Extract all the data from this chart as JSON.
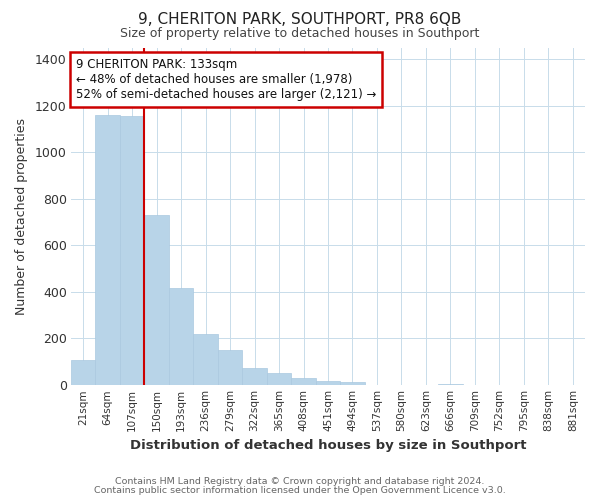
{
  "title": "9, CHERITON PARK, SOUTHPORT, PR8 6QB",
  "subtitle": "Size of property relative to detached houses in Southport",
  "xlabel": "Distribution of detached houses by size in Southport",
  "ylabel": "Number of detached properties",
  "bar_labels": [
    "21sqm",
    "64sqm",
    "107sqm",
    "150sqm",
    "193sqm",
    "236sqm",
    "279sqm",
    "322sqm",
    "365sqm",
    "408sqm",
    "451sqm",
    "494sqm",
    "537sqm",
    "580sqm",
    "623sqm",
    "666sqm",
    "709sqm",
    "752sqm",
    "795sqm",
    "838sqm",
    "881sqm"
  ],
  "bar_heights": [
    107,
    1160,
    1155,
    730,
    415,
    220,
    148,
    73,
    50,
    30,
    18,
    13,
    0,
    0,
    0,
    5,
    0,
    0,
    0,
    0,
    0
  ],
  "bar_color": "#b8d4e8",
  "annotation_text": "9 CHERITON PARK: 133sqm\n← 48% of detached houses are smaller (1,978)\n52% of semi-detached houses are larger (2,121) →",
  "annotation_box_color": "#ffffff",
  "annotation_box_edgecolor": "#cc0000",
  "ylim": [
    0,
    1450
  ],
  "yticks": [
    0,
    200,
    400,
    600,
    800,
    1000,
    1200,
    1400
  ],
  "grid_color": "#c8dcea",
  "footer_line1": "Contains HM Land Registry data © Crown copyright and database right 2024.",
  "footer_line2": "Contains public sector information licensed under the Open Government Licence v3.0.",
  "vline_color": "#cc0000",
  "vline_x_index": 2.5
}
